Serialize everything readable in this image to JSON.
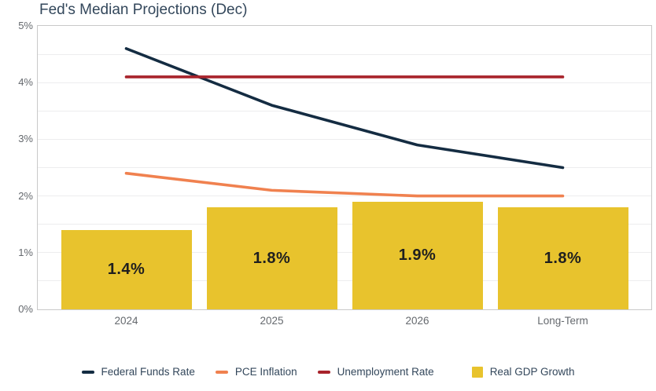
{
  "chart_data": {
    "type": "bar+line combo",
    "title": "Fed's Median Projections (Dec)",
    "categories": [
      "2024",
      "2025",
      "2026",
      "Long-Term"
    ],
    "y_axis": {
      "min": 0,
      "max": 5,
      "major_tick_step": 1,
      "minor_gridline_step": 0.5,
      "tick_labels": [
        "0%",
        "1%",
        "2%",
        "3%",
        "4%",
        "5%"
      ],
      "tick_suffix": "%"
    },
    "grid": true,
    "legend_position": "bottom",
    "bar_series": {
      "name": "Real GDP Growth",
      "values": [
        1.4,
        1.8,
        1.9,
        1.8
      ],
      "data_labels": [
        "1.4%",
        "1.8%",
        "1.9%",
        "1.8%"
      ],
      "color": "#e8c32d"
    },
    "line_series": [
      {
        "name": "Federal Funds Rate",
        "values": [
          4.6,
          3.6,
          2.9,
          2.5
        ],
        "color": "#142c42"
      },
      {
        "name": "PCE Inflation",
        "values": [
          2.4,
          2.1,
          2.0,
          2.0
        ],
        "color": "#f0814f"
      },
      {
        "name": "Unemployment Rate",
        "values": [
          4.1,
          4.1,
          4.1,
          4.1
        ],
        "color": "#a8232b"
      }
    ],
    "panel_border_color": "#c9c9c9",
    "gridline_color": "#ededee",
    "title_color": "#33475b",
    "axis_text_color": "#65696e"
  }
}
